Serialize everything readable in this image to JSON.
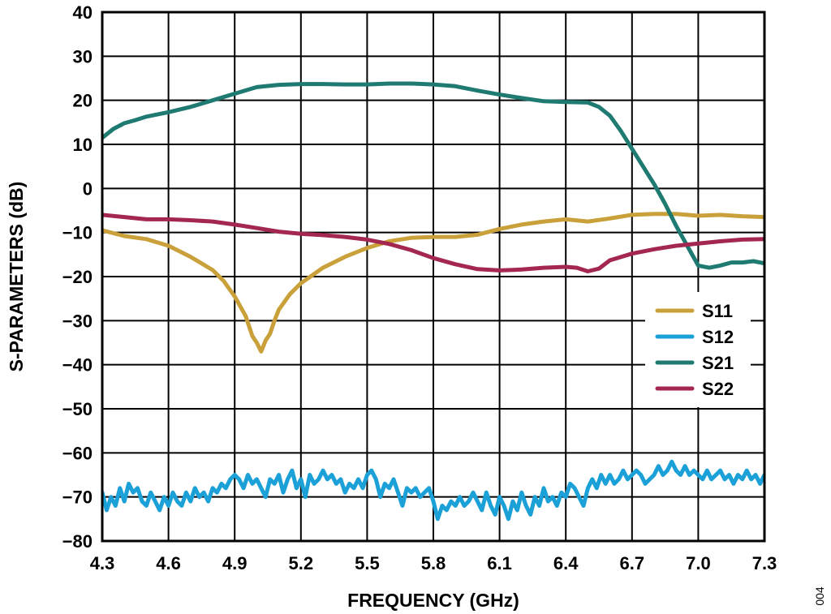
{
  "chart_data": {
    "type": "line",
    "xlabel": "FREQUENCY (GHz)",
    "ylabel": "S-PARAMETERS (dB)",
    "xlim": [
      4.3,
      7.3
    ],
    "ylim": [
      -80,
      40
    ],
    "xticks": [
      "4.3",
      "4.6",
      "4.9",
      "5.2",
      "5.5",
      "5.8",
      "6.1",
      "6.4",
      "6.7",
      "7.0",
      "7.3"
    ],
    "yticks": [
      "40",
      "30",
      "20",
      "10",
      "0",
      "−10",
      "−20",
      "−30",
      "−40",
      "−50",
      "−60",
      "−70",
      "−80"
    ],
    "grid": true,
    "legend_position": "right",
    "figure_id": "004",
    "series": [
      {
        "name": "S11",
        "color": "#C9A03A",
        "points": [
          [
            4.3,
            -9.5
          ],
          [
            4.4,
            -10.8
          ],
          [
            4.5,
            -11.5
          ],
          [
            4.6,
            -13
          ],
          [
            4.7,
            -15.5
          ],
          [
            4.8,
            -18.5
          ],
          [
            4.85,
            -21
          ],
          [
            4.9,
            -24.5
          ],
          [
            4.95,
            -29
          ],
          [
            4.98,
            -33.5
          ],
          [
            5.0,
            -35
          ],
          [
            5.02,
            -37
          ],
          [
            5.04,
            -34.5
          ],
          [
            5.06,
            -33
          ],
          [
            5.08,
            -30
          ],
          [
            5.1,
            -27.5
          ],
          [
            5.15,
            -24
          ],
          [
            5.2,
            -21.5
          ],
          [
            5.3,
            -18
          ],
          [
            5.4,
            -15.5
          ],
          [
            5.5,
            -13.5
          ],
          [
            5.6,
            -12
          ],
          [
            5.7,
            -11.2
          ],
          [
            5.8,
            -11
          ],
          [
            5.9,
            -11
          ],
          [
            6.0,
            -10.5
          ],
          [
            6.1,
            -9.2
          ],
          [
            6.2,
            -8.2
          ],
          [
            6.3,
            -7.5
          ],
          [
            6.4,
            -7
          ],
          [
            6.5,
            -7.5
          ],
          [
            6.6,
            -6.8
          ],
          [
            6.7,
            -6
          ],
          [
            6.8,
            -5.8
          ],
          [
            6.9,
            -5.8
          ],
          [
            7.0,
            -6.2
          ],
          [
            7.1,
            -6
          ],
          [
            7.2,
            -6.3
          ],
          [
            7.3,
            -6.5
          ]
        ]
      },
      {
        "name": "S12",
        "color": "#1BA1D8",
        "points": [
          [
            4.3,
            -69
          ],
          [
            4.32,
            -73
          ],
          [
            4.34,
            -70
          ],
          [
            4.36,
            -72
          ],
          [
            4.38,
            -68
          ],
          [
            4.4,
            -71
          ],
          [
            4.42,
            -67
          ],
          [
            4.44,
            -69
          ],
          [
            4.46,
            -68
          ],
          [
            4.48,
            -71
          ],
          [
            4.5,
            -72
          ],
          [
            4.52,
            -69
          ],
          [
            4.54,
            -71
          ],
          [
            4.56,
            -73
          ],
          [
            4.58,
            -70
          ],
          [
            4.6,
            -72
          ],
          [
            4.62,
            -69
          ],
          [
            4.64,
            -71
          ],
          [
            4.66,
            -72
          ],
          [
            4.68,
            -69
          ],
          [
            4.7,
            -71
          ],
          [
            4.72,
            -68
          ],
          [
            4.74,
            -70
          ],
          [
            4.76,
            -69
          ],
          [
            4.78,
            -71
          ],
          [
            4.8,
            -68
          ],
          [
            4.82,
            -69
          ],
          [
            4.84,
            -67
          ],
          [
            4.86,
            -68
          ],
          [
            4.88,
            -66
          ],
          [
            4.9,
            -65
          ],
          [
            4.92,
            -66
          ],
          [
            4.94,
            -68
          ],
          [
            4.96,
            -65
          ],
          [
            4.98,
            -67
          ],
          [
            5.0,
            -66
          ],
          [
            5.02,
            -68
          ],
          [
            5.04,
            -70
          ],
          [
            5.06,
            -66
          ],
          [
            5.08,
            -67
          ],
          [
            5.1,
            -65
          ],
          [
            5.12,
            -69
          ],
          [
            5.14,
            -66
          ],
          [
            5.16,
            -64
          ],
          [
            5.18,
            -68
          ],
          [
            5.2,
            -66
          ],
          [
            5.22,
            -70
          ],
          [
            5.24,
            -65
          ],
          [
            5.26,
            -67
          ],
          [
            5.28,
            -66
          ],
          [
            5.3,
            -64
          ],
          [
            5.32,
            -66
          ],
          [
            5.34,
            -65
          ],
          [
            5.36,
            -67
          ],
          [
            5.38,
            -66
          ],
          [
            5.4,
            -69
          ],
          [
            5.42,
            -67
          ],
          [
            5.44,
            -68
          ],
          [
            5.46,
            -66
          ],
          [
            5.48,
            -68
          ],
          [
            5.5,
            -65
          ],
          [
            5.52,
            -64
          ],
          [
            5.54,
            -66
          ],
          [
            5.56,
            -70
          ],
          [
            5.58,
            -67
          ],
          [
            5.6,
            -68
          ],
          [
            5.62,
            -66
          ],
          [
            5.64,
            -69
          ],
          [
            5.66,
            -72
          ],
          [
            5.68,
            -68
          ],
          [
            5.7,
            -69
          ],
          [
            5.72,
            -68
          ],
          [
            5.74,
            -70
          ],
          [
            5.76,
            -69
          ],
          [
            5.78,
            -68
          ],
          [
            5.8,
            -71
          ],
          [
            5.82,
            -75
          ],
          [
            5.84,
            -72
          ],
          [
            5.86,
            -73
          ],
          [
            5.88,
            -71
          ],
          [
            5.9,
            -72
          ],
          [
            5.92,
            -70
          ],
          [
            5.94,
            -72
          ],
          [
            5.96,
            -71
          ],
          [
            5.98,
            -69
          ],
          [
            6.0,
            -71
          ],
          [
            6.02,
            -73
          ],
          [
            6.04,
            -69
          ],
          [
            6.06,
            -72
          ],
          [
            6.08,
            -74
          ],
          [
            6.1,
            -70
          ],
          [
            6.12,
            -72
          ],
          [
            6.14,
            -75
          ],
          [
            6.16,
            -71
          ],
          [
            6.18,
            -73
          ],
          [
            6.2,
            -69
          ],
          [
            6.22,
            -72
          ],
          [
            6.24,
            -74
          ],
          [
            6.26,
            -70
          ],
          [
            6.28,
            -72
          ],
          [
            6.3,
            -68
          ],
          [
            6.32,
            -71
          ],
          [
            6.34,
            -70
          ],
          [
            6.36,
            -72
          ],
          [
            6.38,
            -69
          ],
          [
            6.4,
            -70
          ],
          [
            6.42,
            -67
          ],
          [
            6.44,
            -68
          ],
          [
            6.46,
            -70
          ],
          [
            6.48,
            -72
          ],
          [
            6.5,
            -68
          ],
          [
            6.52,
            -66
          ],
          [
            6.54,
            -68
          ],
          [
            6.56,
            -65
          ],
          [
            6.58,
            -67
          ],
          [
            6.6,
            -65
          ],
          [
            6.62,
            -67
          ],
          [
            6.64,
            -66
          ],
          [
            6.66,
            -64
          ],
          [
            6.68,
            -66
          ],
          [
            6.7,
            -65
          ],
          [
            6.72,
            -64
          ],
          [
            6.74,
            -65
          ],
          [
            6.76,
            -67
          ],
          [
            6.78,
            -66
          ],
          [
            6.8,
            -65
          ],
          [
            6.82,
            -63
          ],
          [
            6.84,
            -65
          ],
          [
            6.86,
            -64
          ],
          [
            6.88,
            -62
          ],
          [
            6.9,
            -64
          ],
          [
            6.92,
            -65
          ],
          [
            6.94,
            -63
          ],
          [
            6.96,
            -65
          ],
          [
            6.98,
            -64
          ],
          [
            7.0,
            -65
          ],
          [
            7.02,
            -66
          ],
          [
            7.04,
            -64
          ],
          [
            7.06,
            -66
          ],
          [
            7.08,
            -65
          ],
          [
            7.1,
            -64
          ],
          [
            7.12,
            -66
          ],
          [
            7.14,
            -65
          ],
          [
            7.16,
            -67
          ],
          [
            7.18,
            -65
          ],
          [
            7.2,
            -66
          ],
          [
            7.22,
            -64
          ],
          [
            7.24,
            -66
          ],
          [
            7.26,
            -65
          ],
          [
            7.28,
            -67
          ],
          [
            7.3,
            -65
          ]
        ]
      },
      {
        "name": "S21",
        "color": "#1F7A72",
        "points": [
          [
            4.3,
            11.5
          ],
          [
            4.35,
            13.5
          ],
          [
            4.4,
            14.8
          ],
          [
            4.45,
            15.5
          ],
          [
            4.5,
            16.3
          ],
          [
            4.55,
            16.8
          ],
          [
            4.6,
            17.3
          ],
          [
            4.7,
            18.5
          ],
          [
            4.8,
            20
          ],
          [
            4.9,
            21.5
          ],
          [
            5.0,
            23
          ],
          [
            5.1,
            23.5
          ],
          [
            5.2,
            23.7
          ],
          [
            5.3,
            23.7
          ],
          [
            5.4,
            23.6
          ],
          [
            5.5,
            23.6
          ],
          [
            5.6,
            23.8
          ],
          [
            5.7,
            23.8
          ],
          [
            5.8,
            23.6
          ],
          [
            5.9,
            23.2
          ],
          [
            6.0,
            22.2
          ],
          [
            6.1,
            21.3
          ],
          [
            6.2,
            20.5
          ],
          [
            6.3,
            19.8
          ],
          [
            6.4,
            19.6
          ],
          [
            6.5,
            19.5
          ],
          [
            6.55,
            18.5
          ],
          [
            6.6,
            16.5
          ],
          [
            6.65,
            13
          ],
          [
            6.7,
            9
          ],
          [
            6.75,
            5
          ],
          [
            6.8,
            1
          ],
          [
            6.85,
            -3.5
          ],
          [
            6.9,
            -8.5
          ],
          [
            6.95,
            -13
          ],
          [
            7.0,
            -17.5
          ],
          [
            7.05,
            -18
          ],
          [
            7.1,
            -17.5
          ],
          [
            7.15,
            -16.8
          ],
          [
            7.2,
            -16.8
          ],
          [
            7.25,
            -16.5
          ],
          [
            7.3,
            -17
          ]
        ]
      },
      {
        "name": "S22",
        "color": "#A32750",
        "points": [
          [
            4.3,
            -6
          ],
          [
            4.4,
            -6.5
          ],
          [
            4.5,
            -7
          ],
          [
            4.6,
            -7
          ],
          [
            4.7,
            -7.2
          ],
          [
            4.8,
            -7.5
          ],
          [
            4.9,
            -8.2
          ],
          [
            5.0,
            -9
          ],
          [
            5.1,
            -9.8
          ],
          [
            5.2,
            -10.3
          ],
          [
            5.3,
            -10.6
          ],
          [
            5.4,
            -11
          ],
          [
            5.5,
            -11.6
          ],
          [
            5.6,
            -12.6
          ],
          [
            5.7,
            -14
          ],
          [
            5.8,
            -15.8
          ],
          [
            5.9,
            -17.2
          ],
          [
            6.0,
            -18.3
          ],
          [
            6.1,
            -18.6
          ],
          [
            6.2,
            -18.4
          ],
          [
            6.3,
            -18
          ],
          [
            6.4,
            -17.8
          ],
          [
            6.45,
            -18
          ],
          [
            6.5,
            -18.8
          ],
          [
            6.55,
            -18.2
          ],
          [
            6.6,
            -16.3
          ],
          [
            6.7,
            -14.8
          ],
          [
            6.8,
            -13.8
          ],
          [
            6.9,
            -13
          ],
          [
            7.0,
            -12.5
          ],
          [
            7.1,
            -12
          ],
          [
            7.2,
            -11.6
          ],
          [
            7.3,
            -11.5
          ]
        ]
      }
    ]
  }
}
